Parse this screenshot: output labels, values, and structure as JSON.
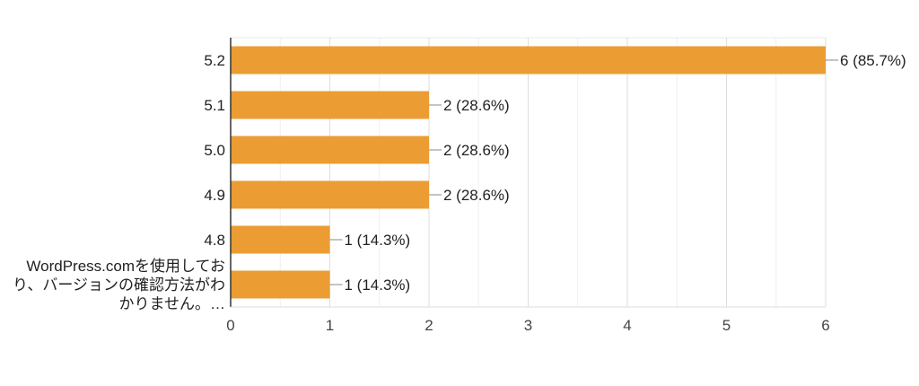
{
  "chart_data": {
    "type": "bar",
    "orientation": "horizontal",
    "categories": [
      "5.2",
      "5.1",
      "5.0",
      "4.9",
      "4.8",
      "WordPress.comを使用しており、バージョンの確認方法がわかりません。…"
    ],
    "category_label_lines": [
      [
        "5.2"
      ],
      [
        "5.1"
      ],
      [
        "5.0"
      ],
      [
        "4.9"
      ],
      [
        "4.8"
      ],
      [
        "WordPress.comを使用してお",
        "り、バージョンの確認方法がわ",
        "かりません。…"
      ]
    ],
    "values": [
      6,
      2,
      2,
      2,
      1,
      1
    ],
    "data_labels": [
      "6 (85.7%)",
      "2 (28.6%)",
      "2 (28.6%)",
      "2 (28.6%)",
      "1 (14.3%)",
      "1 (14.3%)"
    ],
    "x_ticks": [
      "0",
      "1",
      "2",
      "3",
      "4",
      "5",
      "6"
    ],
    "xlim": [
      0,
      6
    ],
    "bar_color": "#eb9d34",
    "grid": true,
    "legend": "none"
  }
}
